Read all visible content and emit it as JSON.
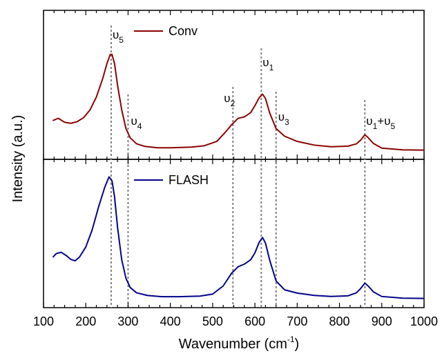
{
  "chart_data": {
    "type": "line",
    "xlabel_main": "Wavenumber (cm",
    "xlabel_sup": "-1",
    "xlabel_end": ")",
    "ylabel": "Intensity (a.u.)",
    "xlim": [
      100,
      1000
    ],
    "xticks": [
      100,
      200,
      300,
      400,
      500,
      600,
      700,
      800,
      900,
      1000
    ],
    "grid": false,
    "legend_position": "top-left of each panel",
    "mode_lines": [
      {
        "label": "υ",
        "sub": "5",
        "x": 260
      },
      {
        "label": "υ",
        "sub": "4",
        "x": 300
      },
      {
        "label": "υ",
        "sub": "2",
        "x": 548
      },
      {
        "label": "υ",
        "sub": "1",
        "x": 615
      },
      {
        "label": "υ",
        "sub": "3",
        "x": 650
      },
      {
        "label": "υ",
        "sub": "1",
        "label2": "+υ",
        "sub2": "5",
        "x": 860
      }
    ],
    "panels": [
      {
        "series": [
          {
            "name": "Conv",
            "color": "#8b0000",
            "x": [
              122,
              135,
              150,
              165,
              180,
              195,
              210,
              225,
              240,
              250,
              258,
              262,
              268,
              275,
              285,
              295,
              305,
              320,
              340,
              370,
              400,
              450,
              480,
              510,
              530,
              545,
              560,
              575,
              590,
              600,
              610,
              618,
              625,
              635,
              650,
              670,
              700,
              740,
              780,
              820,
              840,
              850,
              860,
              868,
              880,
              900,
              950,
              1000
            ],
            "y": [
              0.23,
              0.25,
              0.22,
              0.21,
              0.22,
              0.25,
              0.31,
              0.41,
              0.55,
              0.66,
              0.73,
              0.73,
              0.66,
              0.5,
              0.31,
              0.17,
              0.1,
              0.055,
              0.035,
              0.025,
              0.025,
              0.03,
              0.04,
              0.07,
              0.14,
              0.2,
              0.25,
              0.26,
              0.29,
              0.34,
              0.4,
              0.43,
              0.4,
              0.29,
              0.17,
              0.11,
              0.07,
              0.045,
              0.035,
              0.04,
              0.055,
              0.08,
              0.12,
              0.1,
              0.06,
              0.025,
              0.01,
              0.005
            ]
          }
        ],
        "ylim": [
          0,
          1
        ]
      },
      {
        "series": [
          {
            "name": "FLASH",
            "color": "#00008b",
            "x": [
              122,
              130,
              142,
              155,
              165,
              175,
              185,
              200,
              215,
              230,
              245,
              255,
              262,
              268,
              275,
              285,
              295,
              305,
              320,
              345,
              380,
              420,
              470,
              500,
              525,
              545,
              560,
              575,
              590,
              600,
              610,
              618,
              625,
              635,
              650,
              670,
              700,
              740,
              780,
              820,
              840,
              850,
              860,
              868,
              880,
              900,
              950,
              1000
            ],
            "y": [
              0.32,
              0.35,
              0.36,
              0.33,
              0.3,
              0.29,
              0.32,
              0.4,
              0.53,
              0.7,
              0.85,
              0.93,
              0.9,
              0.78,
              0.55,
              0.3,
              0.16,
              0.09,
              0.05,
              0.03,
              0.02,
              0.02,
              0.025,
              0.04,
              0.1,
              0.2,
              0.25,
              0.27,
              0.3,
              0.35,
              0.43,
              0.47,
              0.43,
              0.3,
              0.14,
              0.07,
              0.045,
              0.03,
              0.025,
              0.03,
              0.05,
              0.08,
              0.12,
              0.1,
              0.06,
              0.025,
              0.01,
              0.005
            ]
          }
        ],
        "ylim": [
          0,
          1
        ]
      }
    ]
  }
}
